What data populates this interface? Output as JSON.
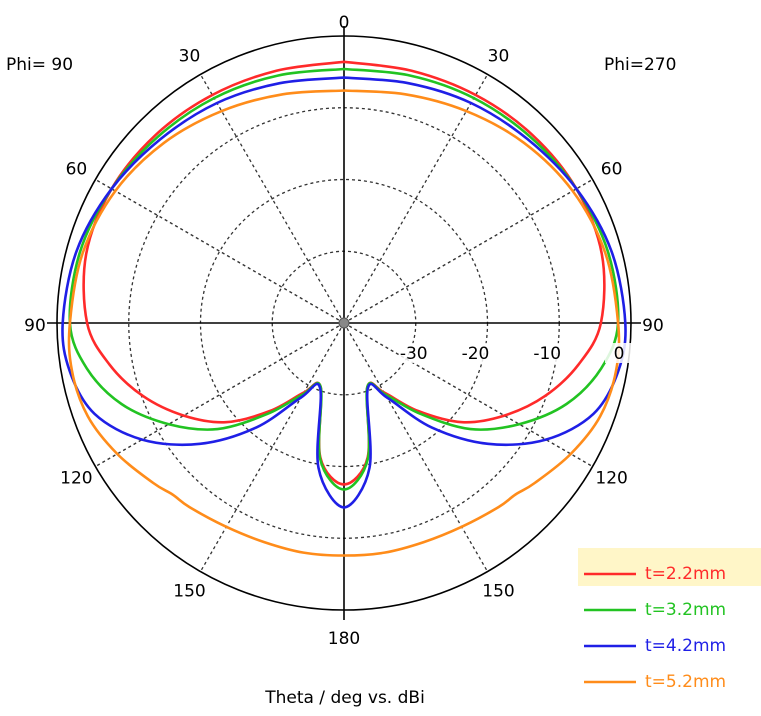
{
  "chart_data": {
    "type": "polar",
    "title": "",
    "xlabel": "Theta / deg vs. dBi",
    "phi_left": "Phi= 90",
    "phi_right": "Phi=270",
    "angle_ticks": [
      {
        "label": "0",
        "theta": 0
      },
      {
        "label": "30",
        "theta": -30
      },
      {
        "label": "60",
        "theta": -60
      },
      {
        "label": "90",
        "theta": -90
      },
      {
        "label": "120",
        "theta": -120
      },
      {
        "label": "150",
        "theta": -150
      },
      {
        "label": "180",
        "theta": 180
      },
      {
        "label": "150",
        "theta": 150
      },
      {
        "label": "120",
        "theta": 120
      },
      {
        "label": "90",
        "theta": 90
      },
      {
        "label": "60",
        "theta": 60
      },
      {
        "label": "30",
        "theta": 30
      }
    ],
    "radial_ticks": [
      {
        "label": "-30",
        "value": -30
      },
      {
        "label": "-20",
        "value": -20
      },
      {
        "label": "-10",
        "value": -10
      },
      {
        "label": "0",
        "value": 0
      }
    ],
    "rlim": [
      -40,
      0
    ],
    "grid": true,
    "legend_position": "bottom-right",
    "series": [
      {
        "name": "t=2.2mm",
        "color": "#ff2a2a",
        "highlighted": true,
        "theta": [
          0,
          15,
          30,
          45,
          60,
          75,
          90,
          100,
          110,
          120,
          130,
          140,
          150,
          160,
          170,
          180
        ],
        "gain_dbi": [
          -3.6,
          -3.6,
          -3.3,
          -2.9,
          -2.6,
          -2.8,
          -4.2,
          -6.8,
          -10.2,
          -14.2,
          -18.5,
          -24.0,
          -28.8,
          -30.5,
          -21.0,
          -17.5
        ]
      },
      {
        "name": "t=3.2mm",
        "color": "#22c322",
        "highlighted": false,
        "theta": [
          0,
          15,
          30,
          45,
          60,
          75,
          90,
          100,
          110,
          120,
          130,
          140,
          150,
          160,
          170,
          180
        ],
        "gain_dbi": [
          -4.6,
          -4.3,
          -3.8,
          -3.3,
          -2.6,
          -1.9,
          -1.8,
          -3.6,
          -7.0,
          -11.8,
          -17.0,
          -23.5,
          -28.5,
          -30.5,
          -20.8,
          -16.8
        ]
      },
      {
        "name": "t=4.2mm",
        "color": "#1f1fe6",
        "highlighted": false,
        "theta": [
          0,
          15,
          30,
          45,
          60,
          75,
          90,
          100,
          110,
          120,
          130,
          140,
          150,
          160,
          170,
          180
        ],
        "gain_dbi": [
          -5.8,
          -5.4,
          -4.6,
          -3.8,
          -2.6,
          -1.4,
          -0.8,
          -1.2,
          -3.0,
          -7.5,
          -13.8,
          -21.0,
          -28.0,
          -30.3,
          -19.5,
          -14.3
        ]
      },
      {
        "name": "t=5.2mm",
        "color": "#ff8c1a",
        "highlighted": false,
        "theta": [
          0,
          15,
          30,
          45,
          60,
          75,
          90,
          100,
          110,
          120,
          130,
          135,
          140,
          150,
          160,
          170,
          180
        ],
        "gain_dbi": [
          -7.6,
          -7.0,
          -5.9,
          -4.5,
          -3.2,
          -2.3,
          -1.8,
          -1.5,
          -2.0,
          -3.5,
          -5.3,
          -6.2,
          -6.5,
          -7.2,
          -7.5,
          -7.5,
          -7.6
        ]
      }
    ]
  }
}
